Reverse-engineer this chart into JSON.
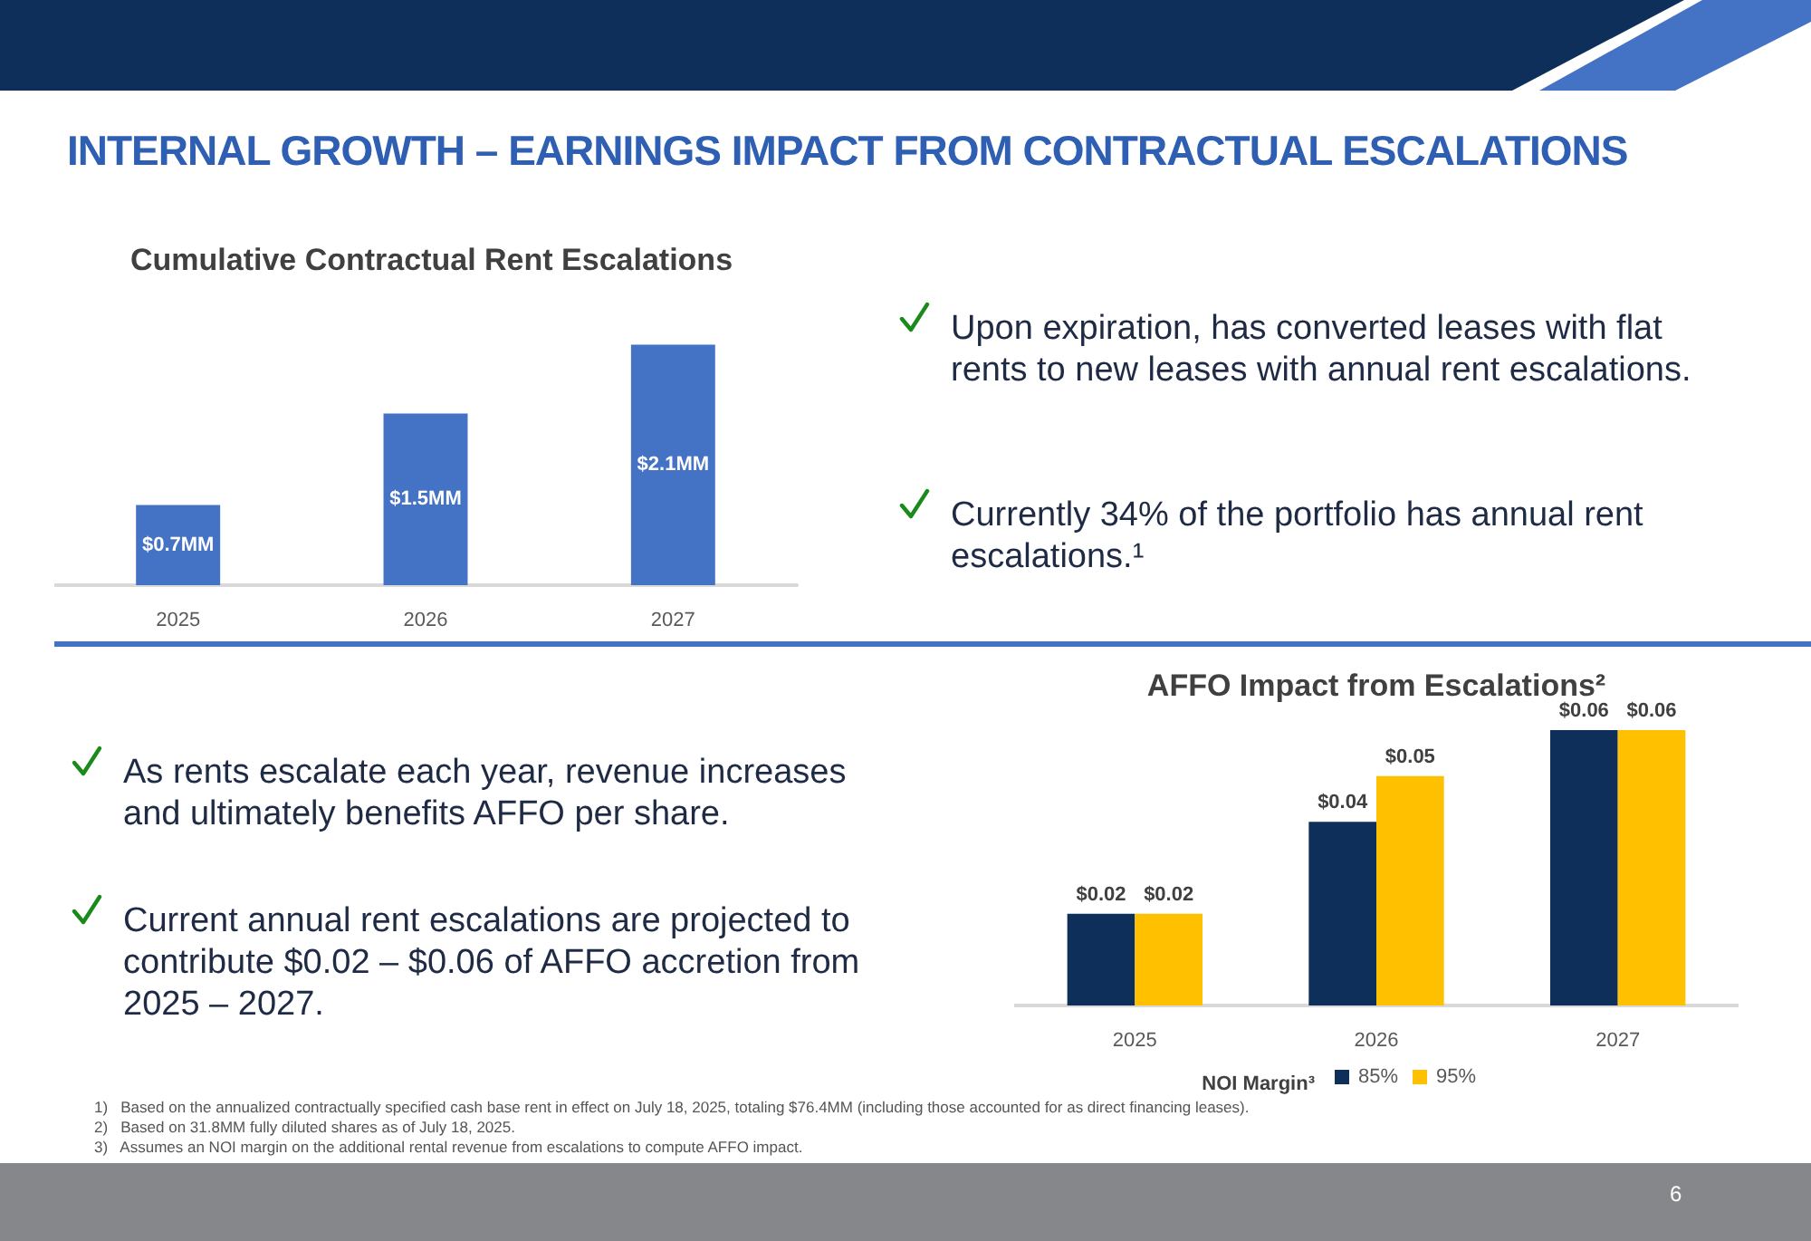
{
  "chart_data": [
    {
      "type": "other",
      "title": "INTERNAL GROWTH – EARNINGS IMPACT FROM CONTRACTUAL ESCALATIONS",
      "annotations": [
        "Upon expiration, has converted leases with flat rents to new leases with annual rent escalations.",
        "Currently 34% of the portfolio has annual rent escalations.¹",
        "As rents escalate each year, revenue increases and ultimately benefits AFFO per share.",
        "Current annual rent escalations are projected to contribute $0.02 – $0.06 of AFFO accretion from 2025 – 2027.",
        "1)   Based on the annualized contractually specified cash base rent in effect on July 18, 2025, totaling $76.4MM (including those accounted for as direct financing leases).",
        "2)   Based on 31.8MM fully diluted shares as of July 18, 2025.",
        "3)   Assumes an NOI margin on the additional rental revenue from escalations to compute AFFO impact.",
        "6"
      ]
    },
    {
      "type": "bar",
      "title": "Cumulative Contractual Rent Escalations",
      "categories": [
        "2025",
        "2026",
        "2027"
      ],
      "values": [
        0.7,
        1.5,
        2.1
      ],
      "value_labels": [
        "$0.7MM",
        "$1.5MM",
        "$2.1MM"
      ],
      "color": "#4472c4",
      "grid": false,
      "legend": false
    },
    {
      "type": "bar",
      "title": "AFFO Impact from Escalations²",
      "categories": [
        "2025",
        "2026",
        "2027"
      ],
      "legend_title": "NOI Margin³",
      "legend": "bottom",
      "grid": false,
      "series": [
        {
          "name": "85%",
          "color": "#0e2f5a",
          "values": [
            0.02,
            0.04,
            0.06
          ],
          "value_labels": [
            "$0.02",
            "$0.04",
            "$0.06"
          ]
        },
        {
          "name": "95%",
          "color": "#ffc000",
          "values": [
            0.02,
            0.05,
            0.06
          ],
          "value_labels": [
            "$0.02",
            "$0.05",
            "$0.06"
          ]
        }
      ]
    }
  ]
}
